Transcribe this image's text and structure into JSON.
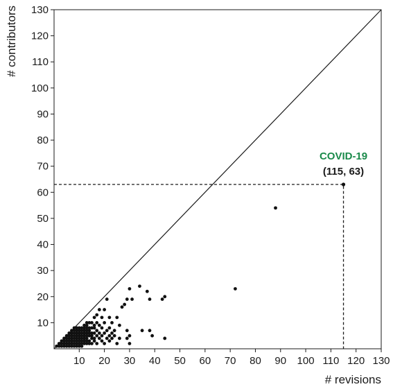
{
  "chart_data": {
    "type": "scatter",
    "xlabel": "# revisions",
    "ylabel": "# contributors",
    "xlim": [
      0,
      130
    ],
    "ylim": [
      0,
      130
    ],
    "xticks": [
      10,
      20,
      30,
      40,
      50,
      60,
      70,
      80,
      90,
      100,
      110,
      120,
      130
    ],
    "yticks": [
      10,
      20,
      30,
      40,
      50,
      60,
      70,
      80,
      90,
      100,
      110,
      120,
      130
    ],
    "reference_line": "y = x",
    "grid": false,
    "colors": {
      "points": "#111111",
      "highlight": "#1a8a4a"
    },
    "highlight": {
      "name": "COVID-19",
      "coords_label": "(115, 63)",
      "x": 115,
      "y": 63
    },
    "points": [
      [
        1,
        1
      ],
      [
        2,
        1
      ],
      [
        2,
        2
      ],
      [
        3,
        1
      ],
      [
        3,
        2
      ],
      [
        3,
        3
      ],
      [
        4,
        1
      ],
      [
        4,
        2
      ],
      [
        4,
        3
      ],
      [
        4,
        4
      ],
      [
        5,
        1
      ],
      [
        5,
        2
      ],
      [
        5,
        3
      ],
      [
        5,
        4
      ],
      [
        5,
        5
      ],
      [
        6,
        1
      ],
      [
        6,
        2
      ],
      [
        6,
        3
      ],
      [
        6,
        4
      ],
      [
        6,
        5
      ],
      [
        6,
        6
      ],
      [
        7,
        1
      ],
      [
        7,
        2
      ],
      [
        7,
        3
      ],
      [
        7,
        4
      ],
      [
        7,
        5
      ],
      [
        7,
        6
      ],
      [
        7,
        7
      ],
      [
        8,
        1
      ],
      [
        8,
        2
      ],
      [
        8,
        3
      ],
      [
        8,
        4
      ],
      [
        8,
        5
      ],
      [
        8,
        6
      ],
      [
        8,
        7
      ],
      [
        8,
        8
      ],
      [
        9,
        1
      ],
      [
        9,
        2
      ],
      [
        9,
        3
      ],
      [
        9,
        4
      ],
      [
        9,
        5
      ],
      [
        9,
        6
      ],
      [
        9,
        7
      ],
      [
        9,
        8
      ],
      [
        10,
        1
      ],
      [
        10,
        2
      ],
      [
        10,
        3
      ],
      [
        10,
        4
      ],
      [
        10,
        5
      ],
      [
        10,
        6
      ],
      [
        10,
        7
      ],
      [
        10,
        8
      ],
      [
        11,
        1
      ],
      [
        11,
        2
      ],
      [
        11,
        3
      ],
      [
        11,
        4
      ],
      [
        11,
        5
      ],
      [
        11,
        6
      ],
      [
        11,
        7
      ],
      [
        11,
        8
      ],
      [
        12,
        2
      ],
      [
        12,
        3
      ],
      [
        12,
        4
      ],
      [
        12,
        5
      ],
      [
        12,
        6
      ],
      [
        12,
        7
      ],
      [
        12,
        8
      ],
      [
        12,
        9
      ],
      [
        13,
        2
      ],
      [
        13,
        3
      ],
      [
        13,
        4
      ],
      [
        13,
        5
      ],
      [
        13,
        6
      ],
      [
        13,
        7
      ],
      [
        13,
        8
      ],
      [
        13,
        9
      ],
      [
        13,
        10
      ],
      [
        14,
        2
      ],
      [
        14,
        3
      ],
      [
        14,
        5
      ],
      [
        14,
        6
      ],
      [
        14,
        7
      ],
      [
        14,
        8
      ],
      [
        14,
        10
      ],
      [
        15,
        2
      ],
      [
        15,
        4
      ],
      [
        15,
        5
      ],
      [
        15,
        6
      ],
      [
        15,
        8
      ],
      [
        15,
        10
      ],
      [
        16,
        3
      ],
      [
        16,
        4
      ],
      [
        16,
        6
      ],
      [
        16,
        8
      ],
      [
        16,
        9
      ],
      [
        16,
        12
      ],
      [
        17,
        2
      ],
      [
        17,
        5
      ],
      [
        17,
        7
      ],
      [
        17,
        10
      ],
      [
        17,
        13
      ],
      [
        18,
        4
      ],
      [
        18,
        6
      ],
      [
        18,
        9
      ],
      [
        18,
        15
      ],
      [
        19,
        3
      ],
      [
        19,
        5
      ],
      [
        19,
        8
      ],
      [
        19,
        12
      ],
      [
        20,
        2
      ],
      [
        20,
        6
      ],
      [
        20,
        10
      ],
      [
        20,
        15
      ],
      [
        21,
        4
      ],
      [
        21,
        7
      ],
      [
        21,
        19
      ],
      [
        22,
        3
      ],
      [
        22,
        5
      ],
      [
        22,
        8
      ],
      [
        22,
        12
      ],
      [
        23,
        4
      ],
      [
        23,
        6
      ],
      [
        23,
        10
      ],
      [
        24,
        5
      ],
      [
        24,
        7
      ],
      [
        25,
        2
      ],
      [
        25,
        12
      ],
      [
        26,
        4
      ],
      [
        26,
        9
      ],
      [
        27,
        16
      ],
      [
        28,
        17
      ],
      [
        29,
        4
      ],
      [
        29,
        7
      ],
      [
        29,
        19
      ],
      [
        30,
        2
      ],
      [
        30,
        5
      ],
      [
        30,
        23
      ],
      [
        31,
        19
      ],
      [
        34,
        24
      ],
      [
        35,
        7
      ],
      [
        37,
        22
      ],
      [
        38,
        7
      ],
      [
        38,
        19
      ],
      [
        39,
        5
      ],
      [
        43,
        19
      ],
      [
        44,
        4
      ],
      [
        44,
        20
      ],
      [
        72,
        23
      ],
      [
        88,
        54
      ]
    ]
  }
}
